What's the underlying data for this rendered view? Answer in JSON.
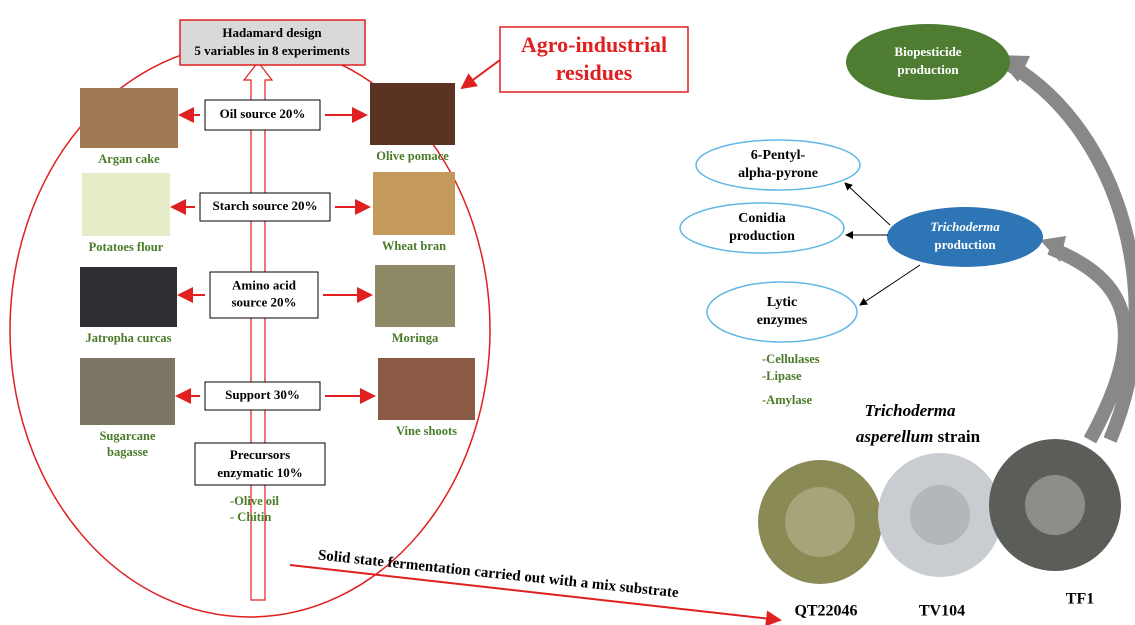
{
  "design": {
    "title": "Hadamard design",
    "subtitle": "5 variables in 8 experiments"
  },
  "residues_label": [
    "Agro-industrial",
    "residues"
  ],
  "sources": [
    {
      "box": [
        "Oil source 20%"
      ],
      "left": [
        "Argan  cake"
      ],
      "right": [
        "Olive pomace"
      ]
    },
    {
      "box": [
        "Starch source 20%"
      ],
      "left": [
        "Potatoes flour"
      ],
      "right": [
        "Wheat bran"
      ]
    },
    {
      "box": [
        "Amino acid",
        "source 20%"
      ],
      "left": [
        "Jatropha curcas"
      ],
      "right": [
        "Moringa"
      ]
    },
    {
      "box": [
        "Support 30%"
      ],
      "left": [
        "Sugarcane",
        "bagasse"
      ],
      "right": [
        "Vine shoots"
      ]
    }
  ],
  "precursors": {
    "box": [
      "Precursors",
      "enzymatic 10%"
    ],
    "items": [
      "-Olive oil",
      "- Chitin"
    ]
  },
  "fermentation": "Solid state fermentation carried out with a mix substrate",
  "biopesticide": [
    "Biopesticide",
    "production"
  ],
  "products": [
    [
      "6-Pentyl-",
      "alpha-pyrone"
    ],
    [
      "Conidia",
      "production"
    ],
    [
      "Lytic",
      "enzymes"
    ]
  ],
  "trichoderma_production": [
    "Trichoderma",
    "production"
  ],
  "enzymes": [
    "-Cellulases",
    "-Lipase",
    "-Amylase"
  ],
  "strain_title": {
    "genus": "Trichoderma",
    "species": "asperellum",
    "word": "strain"
  },
  "strains": [
    "QT22046",
    "TV104",
    "TF1"
  ]
}
